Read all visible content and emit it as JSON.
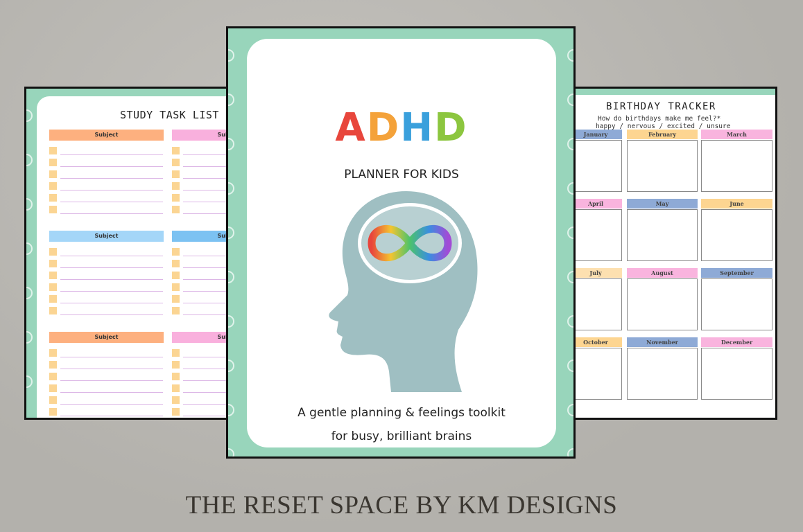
{
  "left_page": {
    "title": "STUDY TASK LIST",
    "section_label": "Subject",
    "colors": {
      "orange": "#fdb07f",
      "pink": "#f9b0dd",
      "light_blue": "#a4d6f8",
      "blue": "#7cc2f2",
      "checkbox": "#fbd593"
    }
  },
  "cover": {
    "title_letters": [
      {
        "char": "A",
        "color": "#e8463c"
      },
      {
        "char": "D",
        "color": "#f4a23a"
      },
      {
        "char": "H",
        "color": "#3aa0dc"
      },
      {
        "char": "D",
        "color": "#8cc63f"
      }
    ],
    "subtitle": "PLANNER FOR KIDS",
    "tagline_1": "A gentle planning & feelings toolkit",
    "tagline_2": "for busy, brilliant brains",
    "frame_color": "#98d5bb",
    "head_color": "#9fbfc2"
  },
  "right_page": {
    "title": "BIRTHDAY TRACKER",
    "question": "How do birthdays make me feel?*",
    "options": "happy / nervous / excited / unsure",
    "months": [
      {
        "name": "January",
        "color": "#8eaad6"
      },
      {
        "name": "February",
        "color": "#fdd591"
      },
      {
        "name": "March",
        "color": "#f9b4de"
      },
      {
        "name": "April",
        "color": "#f9b4de"
      },
      {
        "name": "May",
        "color": "#8eaad6"
      },
      {
        "name": "June",
        "color": "#fdd591"
      },
      {
        "name": "July",
        "color": "#fde0b0"
      },
      {
        "name": "August",
        "color": "#f9b4de"
      },
      {
        "name": "September",
        "color": "#8eaad6"
      },
      {
        "name": "October",
        "color": "#fdd591"
      },
      {
        "name": "November",
        "color": "#8eaad6"
      },
      {
        "name": "December",
        "color": "#f9b4de"
      }
    ]
  },
  "footer": {
    "brand": "THE RESET SPACE BY KM DESIGNS"
  }
}
